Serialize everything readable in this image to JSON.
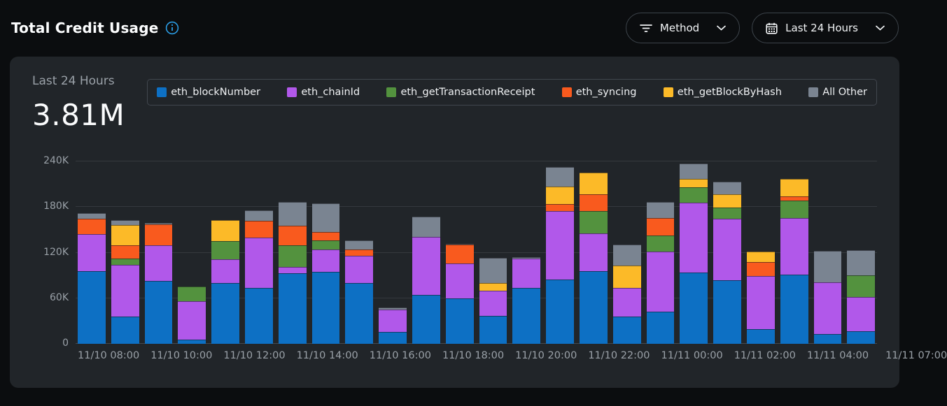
{
  "header": {
    "title": "Total Credit Usage",
    "filters": {
      "method_label": "Method",
      "range_label": "Last 24 Hours"
    }
  },
  "card": {
    "period_label": "Last 24 Hours",
    "total_value": "3.81M"
  },
  "colors": {
    "accent_info": "#2b9ee6",
    "card_bg": "#212529",
    "page_bg": "#0b0d0f"
  },
  "chart_data": {
    "type": "bar",
    "variant": "stacked",
    "title": "Total Credit Usage - Last 24 Hours",
    "value_unit": "K credits",
    "ylim": [
      0,
      240
    ],
    "y_ticks": [
      "0",
      "60K",
      "120K",
      "180K",
      "240K"
    ],
    "grid": true,
    "legend_position": "top",
    "x_tick_labels": [
      "11/10 08:00",
      "11/10 10:00",
      "11/10 12:00",
      "11/10 14:00",
      "11/10 16:00",
      "11/10 18:00",
      "11/10 20:00",
      "11/10 22:00",
      "11/11 00:00",
      "11/11 02:00",
      "11/11 04:00",
      "11/11 07:00"
    ],
    "x_tick_positions": [
      0,
      2,
      4,
      6,
      8,
      10,
      12,
      14,
      16,
      18,
      20,
      23
    ],
    "bar_count": 24,
    "series": [
      {
        "name": "eth_blockNumber",
        "color": "#0d70c4",
        "values": [
          96,
          36,
          83,
          5.5,
          80,
          73.5,
          93,
          95,
          80,
          16,
          64,
          60,
          37,
          74,
          85,
          96,
          36,
          42,
          94,
          84,
          19,
          91,
          13,
          17
        ]
      },
      {
        "name": "eth_chainId",
        "color": "#b158ea",
        "values": [
          48,
          68,
          47,
          51,
          31,
          66.5,
          8,
          29,
          36,
          29,
          77,
          46,
          33,
          38,
          90,
          49,
          38,
          79,
          92,
          81,
          70,
          75,
          68,
          45
        ]
      },
      {
        "name": "eth_getTransactionReceipt",
        "color": "#53923e",
        "values": [
          0,
          8,
          0,
          18.5,
          24,
          0,
          29,
          12,
          0,
          0,
          0,
          0,
          0,
          0,
          0,
          30,
          0,
          22,
          20,
          14,
          0,
          23,
          0,
          28
        ]
      },
      {
        "name": "eth_syncing",
        "color": "#f95a1e",
        "values": [
          20.5,
          18,
          27,
          0,
          0,
          22,
          25,
          11,
          8,
          0,
          0,
          25,
          0,
          0,
          9,
          22,
          0,
          23,
          0,
          0,
          19,
          5,
          0,
          0
        ]
      },
      {
        "name": "eth_getBlockByHash",
        "color": "#fcba28",
        "values": [
          0,
          26,
          0,
          0,
          28,
          0,
          0,
          0,
          0,
          0,
          0,
          0,
          10,
          0,
          23,
          28,
          29,
          0,
          11,
          18,
          13,
          23,
          0,
          0
        ]
      },
      {
        "name": "All Other",
        "color": "#7a8491",
        "values": [
          7.5,
          7,
          2,
          0,
          0,
          14,
          32,
          38,
          12,
          3,
          26,
          1,
          33,
          2,
          26,
          0,
          28,
          21,
          20,
          16,
          0,
          0,
          41,
          33
        ]
      }
    ]
  }
}
